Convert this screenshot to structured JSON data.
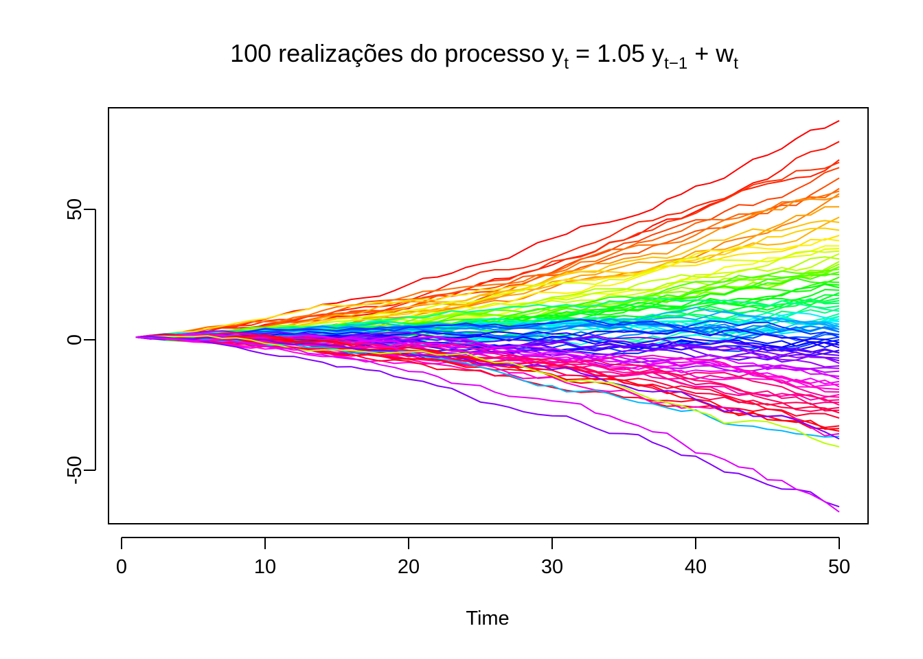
{
  "chart_data": {
    "type": "line",
    "title": {
      "prefix": "100 realizações do processo y",
      "sub1": "t",
      "mid": " = 1.05 y",
      "sub2": "t−1",
      "plus": " + w",
      "sub3": "t"
    },
    "xlabel": "Time",
    "ylabel": "",
    "xlim": [
      0,
      50
    ],
    "ylim": [
      -70,
      85
    ],
    "x_ticks": [
      "0",
      "10",
      "20",
      "30",
      "40",
      "50"
    ],
    "x_tick_values": [
      0,
      10,
      20,
      30,
      40,
      50
    ],
    "y_ticks": [
      "-50",
      "0",
      "50"
    ],
    "y_tick_values": [
      -50,
      0,
      50
    ],
    "grid": false,
    "legend": "none",
    "n_series": 100,
    "x": [
      1,
      2,
      3,
      4,
      5,
      6,
      7,
      8,
      9,
      10,
      11,
      12,
      13,
      14,
      15,
      16,
      17,
      18,
      19,
      20,
      21,
      22,
      23,
      24,
      25,
      26,
      27,
      28,
      29,
      30,
      31,
      32,
      33,
      34,
      35,
      36,
      37,
      38,
      39,
      40,
      41,
      42,
      43,
      44,
      45,
      46,
      47,
      48,
      49,
      50
    ],
    "series_end_values": [
      84,
      76,
      69,
      68,
      66,
      62,
      58,
      57,
      56,
      55,
      51,
      47,
      45,
      42,
      40,
      38,
      36,
      35,
      34,
      33,
      31,
      30,
      29,
      28,
      28,
      27,
      26,
      25,
      24,
      22,
      21,
      20,
      19,
      18,
      17,
      16,
      15,
      14,
      13,
      12,
      11,
      10,
      9,
      9,
      8,
      8,
      7,
      7,
      6,
      6,
      5,
      5,
      4,
      4,
      3,
      3,
      2,
      2,
      1,
      1,
      0,
      -1,
      -1,
      -2,
      -3,
      -4,
      -5,
      -5,
      -6,
      -7,
      -8,
      -9,
      -10,
      -11,
      -12,
      -14,
      -15,
      -16,
      -17,
      -18,
      -19,
      -20,
      -21,
      -22,
      -23,
      -24,
      -25,
      -26,
      -27,
      -28,
      -30,
      -33,
      -34,
      -35,
      -36,
      -37,
      -38,
      -41,
      -64,
      -66
    ],
    "colors": [
      "#FF0000",
      "#FF1000",
      "#FF2000",
      "#FF3000",
      "#FF4000",
      "#FF5000",
      "#FF6000",
      "#FF7000",
      "#FF8000",
      "#FF9000",
      "#FFA000",
      "#FFB000",
      "#FFC000",
      "#FFD000",
      "#FFE000",
      "#FFF000",
      "#F0FF00",
      "#E0FF00",
      "#D0FF00",
      "#C0FF00",
      "#B0FF00",
      "#A0FF00",
      "#90FF00",
      "#80FF00",
      "#70FF00",
      "#60FF00",
      "#50FF00",
      "#40FF00",
      "#30FF00",
      "#20FF00",
      "#10FF00",
      "#00FF00",
      "#00FF10",
      "#00FF20",
      "#00FF30",
      "#00FF40",
      "#00FF50",
      "#00FF60",
      "#00FF70",
      "#00FF80",
      "#00FF90",
      "#00FFA0",
      "#00FFB0",
      "#00FFC0",
      "#00FFD0",
      "#00FFE0",
      "#00FFF0",
      "#00F0FF",
      "#00E0FF",
      "#00D0FF",
      "#00C0FF",
      "#00B0FF",
      "#00A0FF",
      "#0090FF",
      "#0080FF",
      "#0070FF",
      "#0060FF",
      "#0050FF",
      "#0040FF",
      "#0030FF",
      "#0020FF",
      "#0010FF",
      "#0000FF",
      "#1000FF",
      "#2000FF",
      "#3000FF",
      "#4000FF",
      "#5000FF",
      "#6000FF",
      "#7000FF",
      "#8000FF",
      "#9000FF",
      "#A000FF",
      "#B000FF",
      "#C000FF",
      "#D000FF",
      "#E000FF",
      "#F000FF",
      "#FF00F0",
      "#FF00E0",
      "#FF00D0",
      "#FF00C0",
      "#FF00B0",
      "#FF00A0",
      "#FF0090",
      "#FF0080",
      "#FF0070",
      "#FF0060",
      "#FF0050",
      "#FF0040",
      "#FF0030",
      "#FF0020",
      "#FF0010",
      "#FF0008",
      "#FF00C8",
      "#00B8FF",
      "#7800FF",
      "#B8FF00",
      "#8000FF",
      "#E000FF"
    ]
  }
}
